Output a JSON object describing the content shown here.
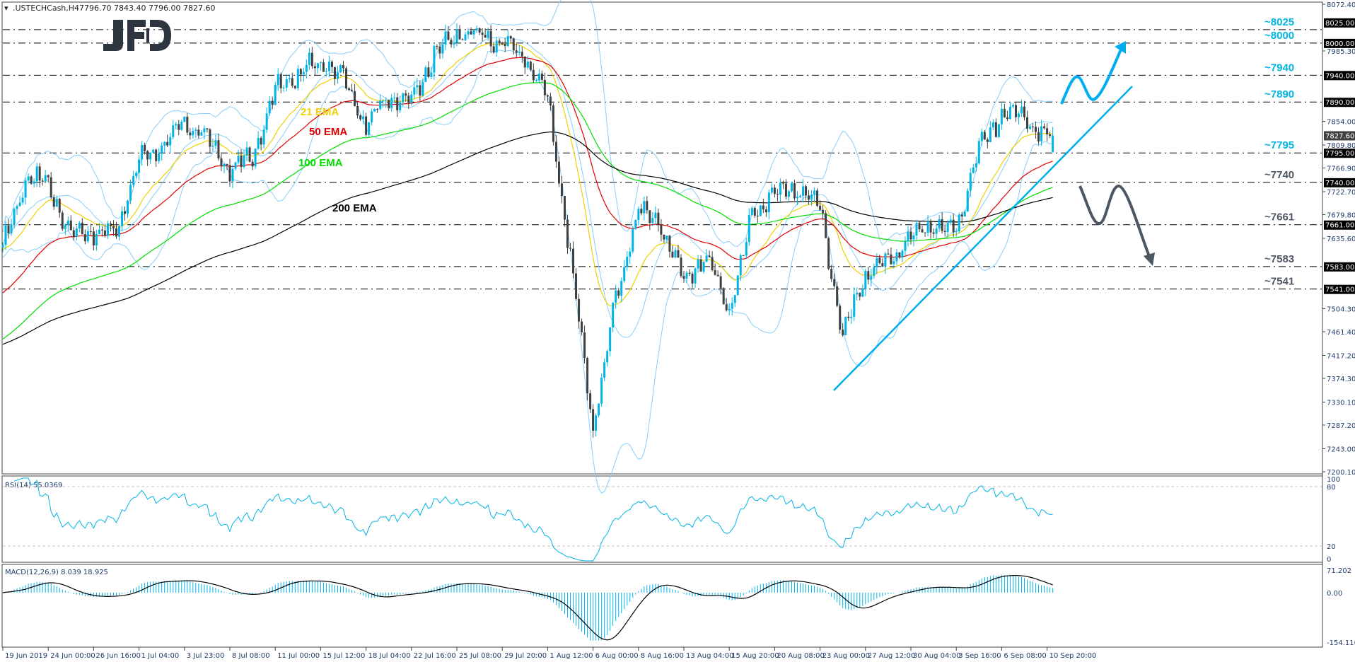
{
  "header": {
    "symbol": ".USTECHCash,H4",
    "ohlc": "7796.70 7843.40 7796.00 7827.60",
    "menu_icon": "triangle-down-icon"
  },
  "logo": {
    "text": "JFD",
    "color": "#2d3540"
  },
  "colors": {
    "bull": "#00b4e6",
    "bear": "#404040",
    "ema21": "#f0d000",
    "ema50": "#e00000",
    "ema100": "#00dd00",
    "ema200": "#000000",
    "bollinger": "#87cefa",
    "resistance_label": "#00b4e0",
    "support_label": "#4d5663",
    "trendline": "#00aeef",
    "bull_arrow": "#00aeef",
    "bear_arrow": "#4d5663"
  },
  "chart_data": {
    "type": "candlestick",
    "title": ".USTECHCash,H4",
    "last_bar": {
      "open": 7796.7,
      "high": 7843.4,
      "low": 7796.0,
      "close": 7827.6
    },
    "x_labels": [
      "19 Jun 2019",
      "24 Jun 00:00",
      "26 Jun 16:00",
      "1 Jul 04:00",
      "3 Jul 23:00",
      "8 Jul 08:00",
      "11 Jul 00:00",
      "15 Jul 12:00",
      "18 Jul 04:00",
      "22 Jul 16:00",
      "25 Jul 08:00",
      "29 Jul 20:00",
      "1 Aug 12:00",
      "6 Aug 00:00",
      "8 Aug 16:00",
      "13 Aug 04:00",
      "15 Aug 20:00",
      "20 Aug 08:00",
      "23 Aug 00:00",
      "27 Aug 12:00",
      "30 Aug 04:00",
      "3 Sep 16:00",
      "6 Sep 08:00",
      "10 Sep 20:00"
    ],
    "closes_at_labels": [
      7613,
      7738,
      7645,
      7782,
      7850,
      7760,
      7910,
      7965,
      7845,
      7890,
      8016,
      8000,
      7900,
      7280,
      7690,
      7560,
      7500,
      7726,
      7700,
      7570,
      7640,
      7650,
      7871,
      7827
    ],
    "closes_between_labels": [
      7745,
      7640,
      7650,
      7810,
      7820,
      7790,
      7940,
      7940,
      7900,
      7980,
      8016,
      7970,
      7600,
      7520,
      7660,
      7600,
      7680,
      7726,
      7450,
      7590,
      7661,
      7800,
      7860
    ],
    "y_range": [
      7200.1,
      8072.4
    ],
    "y_ticks": [
      "8072.40",
      "7985.30",
      "7854.00",
      "7809.80",
      "7766.90",
      "7722.70",
      "7679.80",
      "7635.60",
      "7504.30",
      "7461.40",
      "7417.20",
      "7374.30",
      "7330.10",
      "7287.20",
      "7243.00",
      "7200.10"
    ],
    "current_price": "7827.60",
    "levels": [
      {
        "value": 8025,
        "axis_label": "8025.00",
        "annotation": "~8025",
        "kind": "resistance"
      },
      {
        "value": 8000,
        "axis_label": "8000.00",
        "annotation": "~8000",
        "kind": "resistance"
      },
      {
        "value": 7940,
        "axis_label": "7940.00",
        "annotation": "~7940",
        "kind": "resistance"
      },
      {
        "value": 7890,
        "axis_label": "7890.00",
        "annotation": "~7890",
        "kind": "resistance"
      },
      {
        "value": 7795,
        "axis_label": "7795.00",
        "annotation": "~7795",
        "kind": "resistance"
      },
      {
        "value": 7740,
        "axis_label": "7740.00",
        "annotation": "~7740",
        "kind": "support"
      },
      {
        "value": 7661,
        "axis_label": "7661.00",
        "annotation": "~7661",
        "kind": "support"
      },
      {
        "value": 7583,
        "axis_label": "7583.00",
        "annotation": "~7583",
        "kind": "support"
      },
      {
        "value": 7541,
        "axis_label": "7541.00",
        "annotation": "~7541",
        "kind": "support"
      }
    ],
    "moving_averages": [
      {
        "name": "21 EMA",
        "period": 21,
        "initial": 7613
      },
      {
        "name": "50 EMA",
        "period": 50,
        "initial": 7530
      },
      {
        "name": "100 EMA",
        "period": 100,
        "initial": 7444
      },
      {
        "name": "200 EMA",
        "period": 200,
        "initial": 7436
      }
    ],
    "bollinger": {
      "period": 20,
      "deviations": 2
    },
    "rsi": {
      "label": "RSI(14) 55.0369",
      "period": 14,
      "ticks": [
        "100",
        "80",
        "20",
        "0"
      ],
      "levels": [
        80,
        20
      ]
    },
    "macd": {
      "label": "MACD(12,26,9) 8.039 18.925",
      "fast": 12,
      "slow": 26,
      "signal": 9,
      "ticks": [
        "71.202",
        "0.00",
        "-154.116"
      ],
      "range": [
        -154.116,
        71.202
      ]
    }
  }
}
